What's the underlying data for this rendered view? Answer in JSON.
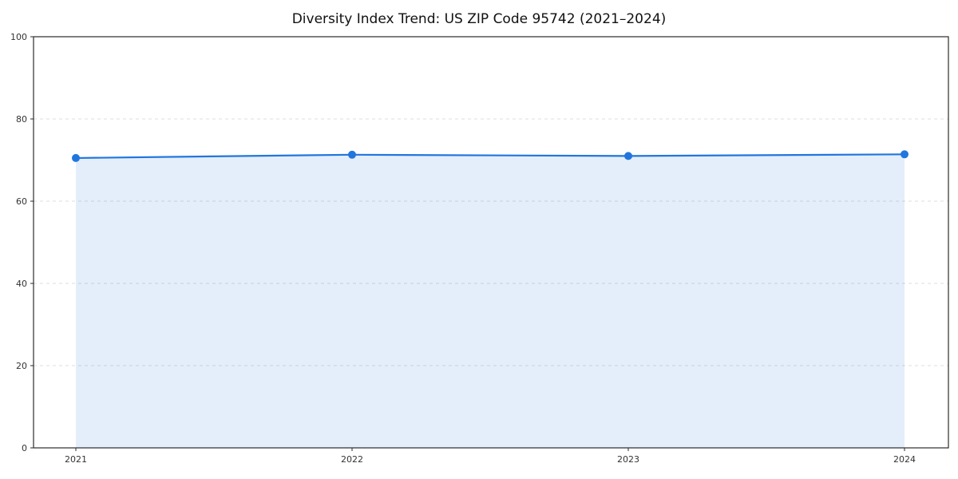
{
  "page": {
    "title": "Diversity Index Trend: US ZIP Code 95742 (2021–2024)"
  },
  "chart_data": {
    "type": "line",
    "title": "Diversity Index Trend: US ZIP Code 95742 (2021–2024)",
    "categories": [
      "2021",
      "2022",
      "2023",
      "2024"
    ],
    "series": [
      {
        "name": "Diversity Index",
        "values": [
          70.5,
          71.3,
          71.0,
          71.4
        ],
        "marker": "circle",
        "area_under_line": true
      }
    ],
    "xlabel": "",
    "ylabel": "",
    "ylim": [
      0,
      100
    ],
    "yticks": [
      0,
      20,
      40,
      60,
      80,
      100
    ],
    "grid": "horizontal-dashed",
    "legend": "none",
    "style": {
      "line_color": "#2176dd",
      "marker_color": "#2176dd",
      "area_fill": "rgba(33,118,221,0.12)",
      "grid_color": "#dcdcdc",
      "axis_color": "#2b2b2b",
      "background": "#ffffff"
    }
  }
}
